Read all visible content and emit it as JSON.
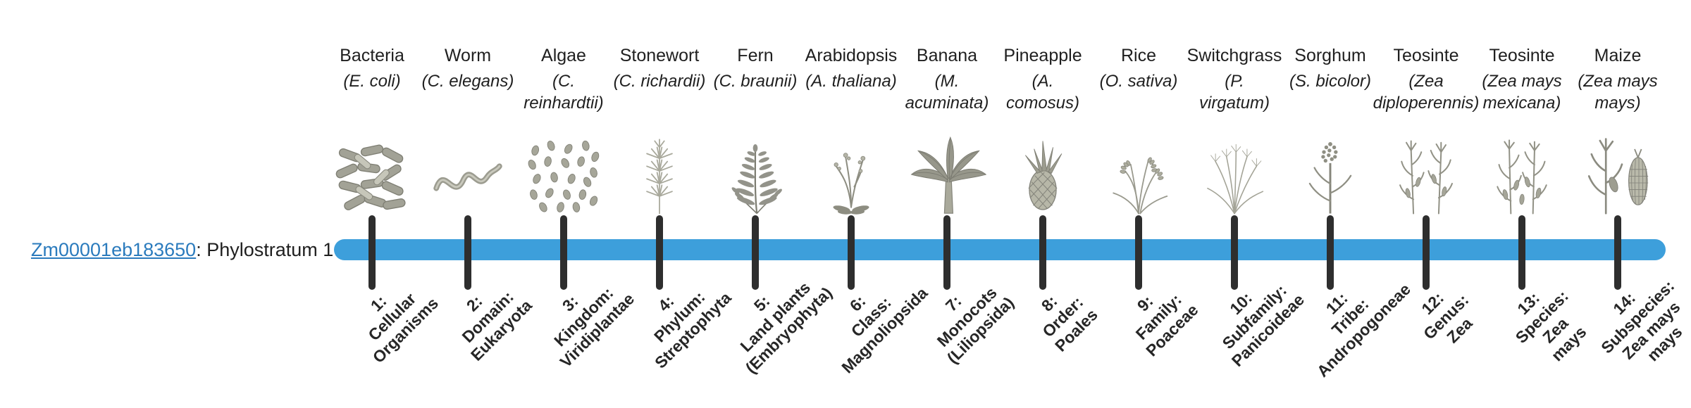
{
  "page": {
    "background": "#ffffff"
  },
  "gene": {
    "id": "Zm00001eb183650",
    "label_suffix": ": Phylostratum 1"
  },
  "colors": {
    "bar": "#3d9fdb",
    "tick": "#2e2e2e",
    "link": "#2b7bbd",
    "text": "#1f1f1f",
    "illustration": "#9a9a8e"
  },
  "organisms": [
    {
      "common": "Bacteria",
      "scientific": "(E. coli)",
      "icon": "bacteria-icon",
      "stratum": "1:\nCellular\nOrganisms"
    },
    {
      "common": "Worm",
      "scientific": "(C. elegans)",
      "icon": "worm-icon",
      "stratum": "2:\nDomain:\nEukaryota"
    },
    {
      "common": "Algae",
      "scientific": "(C.\nreinhardtii)",
      "icon": "algae-icon",
      "stratum": "3:\nKingdom:\nViridiplantae"
    },
    {
      "common": "Stonewort",
      "scientific": "(C. richardii)",
      "icon": "stonewort-icon",
      "stratum": "4:\nPhylum:\nStreptophyta"
    },
    {
      "common": "Fern",
      "scientific": "(C. braunii)",
      "icon": "fern-icon",
      "stratum": "5:\nLand plants\n(Embryophyta)"
    },
    {
      "common": "Arabidopsis",
      "scientific": "(A. thaliana)",
      "icon": "arabidopsis-icon",
      "stratum": "6:\nClass:\nMagnoliopsida"
    },
    {
      "common": "Banana",
      "scientific": "(M.\nacuminata)",
      "icon": "banana-icon",
      "stratum": "7:\nMonocots\n(Liliopsida)"
    },
    {
      "common": "Pineapple",
      "scientific": "(A.\ncomosus)",
      "icon": "pineapple-icon",
      "stratum": "8:\nOrder:\nPoales"
    },
    {
      "common": "Rice",
      "scientific": "(O. sativa)",
      "icon": "rice-icon",
      "stratum": "9:\nFamily:\nPoaceae"
    },
    {
      "common": "Switchgrass",
      "scientific": "(P.\nvirgatum)",
      "icon": "switchgrass-icon",
      "stratum": "10:\nSubfamily:\nPanicoideae"
    },
    {
      "common": "Sorghum",
      "scientific": "(S. bicolor)",
      "icon": "sorghum-icon",
      "stratum": "11:\nTribe:\nAndropogoneae"
    },
    {
      "common": "Teosinte",
      "scientific": "(Zea\ndiploperennis)",
      "icon": "teosinte-diploperennis-icon",
      "stratum": "12:\nGenus:\nZea"
    },
    {
      "common": "Teosinte",
      "scientific": "(Zea mays\nmexicana)",
      "icon": "teosinte-mexicana-icon",
      "stratum": "13:\nSpecies:\nZea\nmays"
    },
    {
      "common": "Maize",
      "scientific": "(Zea mays\nmays)",
      "icon": "maize-icon",
      "stratum": "14:\nSubspecies:\nZea mays\nmays"
    }
  ]
}
